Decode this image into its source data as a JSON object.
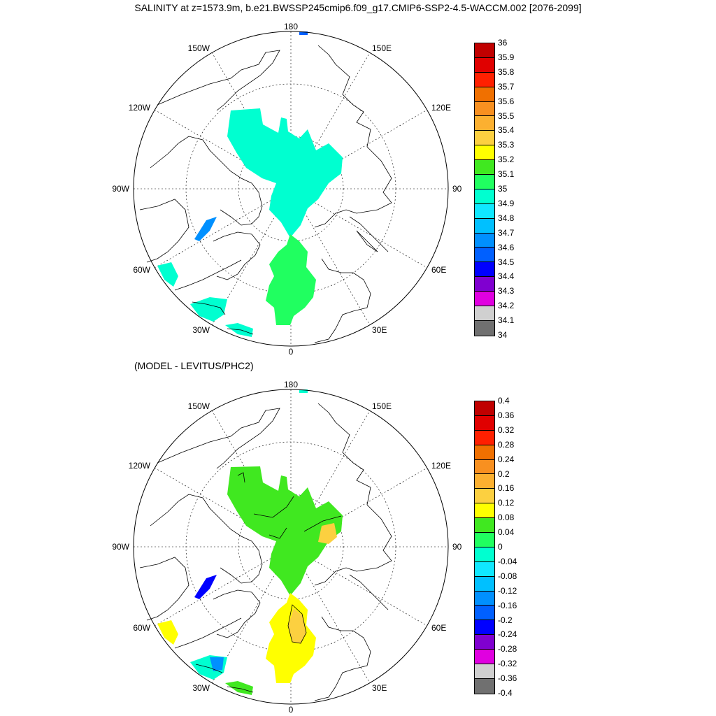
{
  "title": "SALINITY at z=1573.9m, b.e21.BWSSP245cmip6.f09_g17.CMIP6-SSP2-4.5-WACCM.002 [2076-2099]",
  "subtitle": "(MODEL - LEVITUS/PHC2)",
  "map_labels": {
    "lon180": "180",
    "w150": "150W",
    "e150": "150E",
    "w120": "120W",
    "e120": "120E",
    "w90": "90W",
    "e90": "90E",
    "w60": "60W",
    "e60": "60E",
    "w30": "30W",
    "e30": "30E",
    "lon0": "0"
  },
  "colorbar_top": {
    "labels": [
      "36",
      "35.9",
      "35.8",
      "35.7",
      "35.6",
      "35.5",
      "35.4",
      "35.3",
      "35.2",
      "35.1",
      "35",
      "34.9",
      "34.8",
      "34.7",
      "34.6",
      "34.5",
      "34.4",
      "34.3",
      "34.2",
      "34.1",
      "34"
    ],
    "colors": [
      "#c00000",
      "#e00000",
      "#ff2000",
      "#f07000",
      "#f89020",
      "#fcb030",
      "#fcd040",
      "#ffff00",
      "#40e820",
      "#20ff60",
      "#00ffd0",
      "#10e8ff",
      "#00c0ff",
      "#0090ff",
      "#0060ff",
      "#0000ff",
      "#8000d0",
      "#e000e0",
      "#d0d0d0",
      "#707070"
    ]
  },
  "colorbar_bottom": {
    "labels": [
      "0.4",
      "0.36",
      "0.32",
      "0.28",
      "0.24",
      "0.2",
      "0.16",
      "0.12",
      "0.08",
      "0.04",
      "0",
      "-0.04",
      "-0.08",
      "-0.12",
      "-0.16",
      "-0.2",
      "-0.24",
      "-0.28",
      "-0.32",
      "-0.36",
      "-0.4"
    ],
    "colors": [
      "#c00000",
      "#e00000",
      "#ff2000",
      "#f07000",
      "#f89020",
      "#fcb030",
      "#fcd040",
      "#ffff00",
      "#40e820",
      "#20ff60",
      "#00ffd0",
      "#10e8ff",
      "#00c0ff",
      "#0090ff",
      "#0060ff",
      "#0000ff",
      "#8000d0",
      "#e000e0",
      "#d0d0d0",
      "#707070"
    ]
  }
}
